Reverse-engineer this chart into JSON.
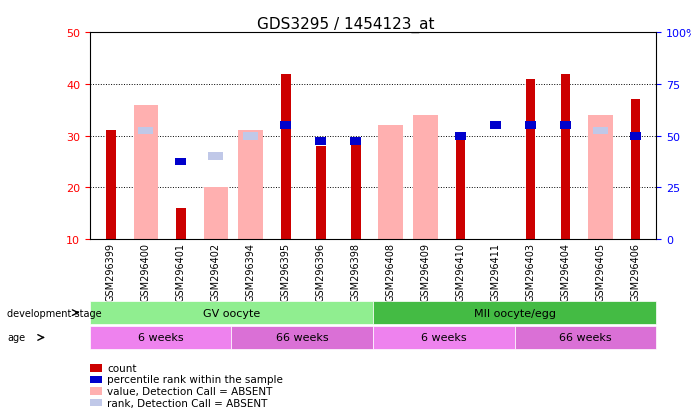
{
  "title": "GDS3295 / 1454123_at",
  "samples": [
    "GSM296399",
    "GSM296400",
    "GSM296401",
    "GSM296402",
    "GSM296394",
    "GSM296395",
    "GSM296396",
    "GSM296398",
    "GSM296408",
    "GSM296409",
    "GSM296410",
    "GSM296411",
    "GSM296403",
    "GSM296404",
    "GSM296405",
    "GSM296406"
  ],
  "count": [
    31,
    null,
    16,
    null,
    null,
    42,
    28,
    29,
    null,
    null,
    30,
    null,
    41,
    42,
    null,
    37
  ],
  "percentile": [
    null,
    null,
    25,
    null,
    null,
    32,
    29,
    29,
    null,
    null,
    30,
    32,
    32,
    32,
    null,
    30
  ],
  "value_absent": [
    null,
    36,
    null,
    20,
    31,
    null,
    null,
    null,
    32,
    34,
    null,
    null,
    null,
    null,
    34,
    null
  ],
  "rank_absent": [
    null,
    31,
    null,
    26,
    30,
    null,
    null,
    null,
    null,
    null,
    null,
    null,
    null,
    null,
    31,
    null
  ],
  "ylim_left": [
    10,
    50
  ],
  "ylim_right": [
    0,
    100
  ],
  "bar_width": 0.35,
  "color_count": "#cc0000",
  "color_percentile": "#0000cc",
  "color_value_absent": "#ffb0b0",
  "color_rank_absent": "#c0c8e8",
  "grid_color": "#000000",
  "bg_color": "#ffffff",
  "groups": {
    "GV oocyte": {
      "start": 0,
      "end": 8,
      "color": "#90ee90"
    },
    "MII oocyte/egg": {
      "start": 8,
      "end": 16,
      "color": "#44bb44"
    }
  },
  "age_groups": [
    {
      "label": "6 weeks",
      "start": 0,
      "end": 4,
      "color": "#ee82ee"
    },
    {
      "label": "66 weeks",
      "start": 4,
      "end": 8,
      "color": "#da70d6"
    },
    {
      "label": "6 weeks",
      "start": 8,
      "end": 12,
      "color": "#ee82ee"
    },
    {
      "label": "66 weeks",
      "start": 12,
      "end": 16,
      "color": "#da70d6"
    }
  ],
  "legend_items": [
    {
      "label": "count",
      "color": "#cc0000"
    },
    {
      "label": "percentile rank within the sample",
      "color": "#0000cc"
    },
    {
      "label": "value, Detection Call = ABSENT",
      "color": "#ffb0b0"
    },
    {
      "label": "rank, Detection Call = ABSENT",
      "color": "#c0c8e8"
    }
  ]
}
